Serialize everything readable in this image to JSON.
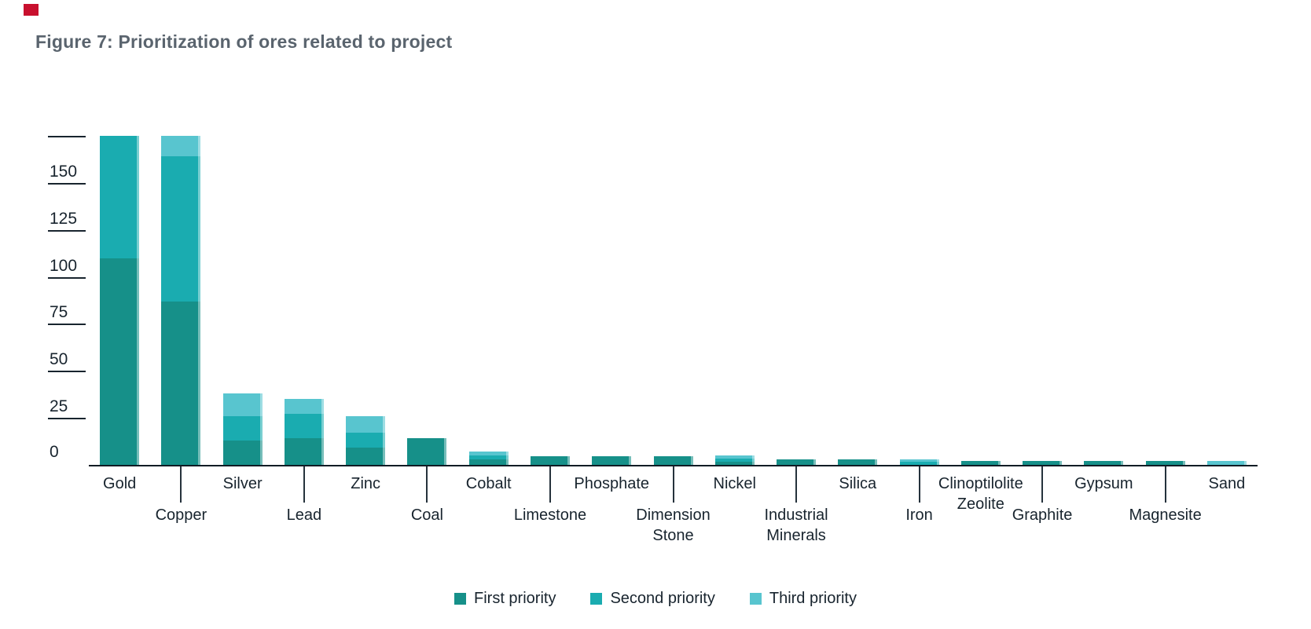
{
  "page": {
    "corner_mark_color": "#c8102e",
    "title_color": "#5a646e",
    "text_color": "#18242e",
    "axis_color": "#101b24"
  },
  "chart_data": {
    "type": "bar",
    "stacked": true,
    "title": "Figure 7: Prioritization of ores related to project",
    "xlabel": "",
    "ylabel": "",
    "categories": [
      "Gold",
      "Copper",
      "Silver",
      "Lead",
      "Zinc",
      "Coal",
      "Cobalt",
      "Limestone",
      "Phosphate",
      "Dimension Stone",
      "Nickel",
      "Industrial Minerals",
      "Silica",
      "Iron",
      "Clinoptilolite Zeolite",
      "Graphite",
      "Gypsum",
      "Magnesite",
      "Sand"
    ],
    "series": [
      {
        "name": "First priority",
        "color": "#169089",
        "values": [
          110,
          87,
          13,
          14,
          9,
          14,
          3,
          4.5,
          4.5,
          4.5,
          1.5,
          3,
          3,
          0,
          2,
          2,
          2,
          2,
          0
        ]
      },
      {
        "name": "Second priority",
        "color": "#1aacb0",
        "values": [
          65,
          77,
          13,
          13,
          8,
          0,
          2,
          0,
          0,
          0,
          2,
          0,
          0,
          1.5,
          0,
          0,
          0,
          0,
          0
        ]
      },
      {
        "name": "Third priority",
        "color": "#58c5cf",
        "values": [
          0,
          11,
          12,
          8,
          9,
          0,
          2,
          0,
          0,
          0,
          1.5,
          0,
          0,
          1.5,
          0,
          0,
          0,
          0,
          2
        ]
      }
    ],
    "y_axis": {
      "min": 0,
      "max": 175,
      "tick_step": 25,
      "labeled_ticks": [
        0,
        25,
        50,
        75,
        100,
        125,
        150
      ]
    },
    "legend_position": "bottom",
    "grid": false
  }
}
